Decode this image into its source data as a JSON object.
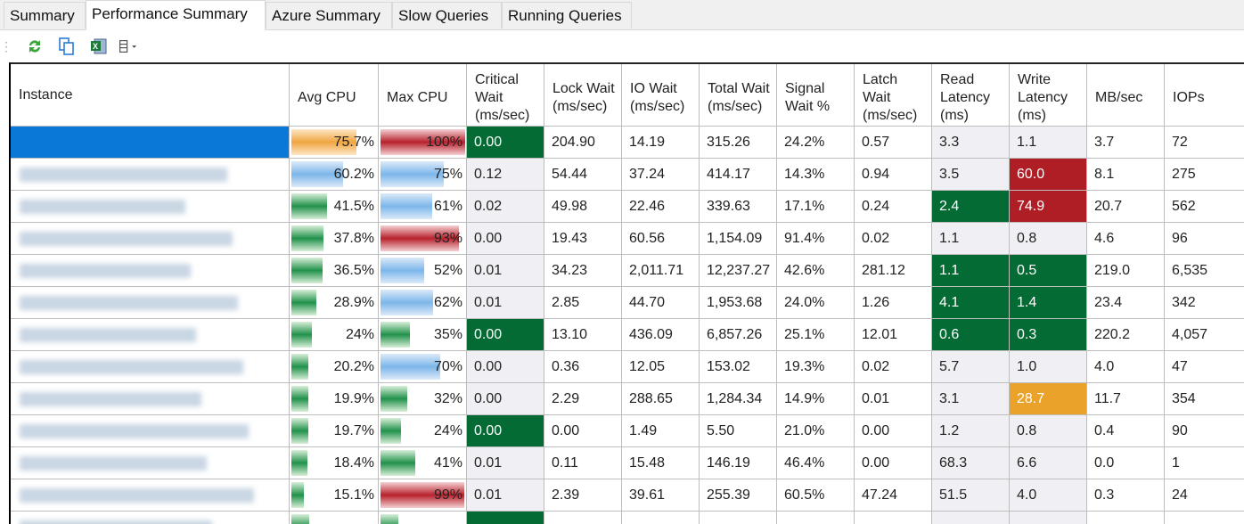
{
  "tabs": [
    "Summary",
    "Performance Summary",
    "Azure Summary",
    "Slow Queries",
    "Running Queries"
  ],
  "active_tab": "Performance Summary",
  "toolbar": {
    "icons": [
      "refresh-icon",
      "copy-icon",
      "excel-export-icon",
      "columns-menu-icon"
    ]
  },
  "columns": [
    "Instance",
    "Avg CPU",
    "Max CPU",
    "Critical Wait (ms/sec)",
    "Lock Wait (ms/sec)",
    "IO Wait (ms/sec)",
    "Total Wait (ms/sec)",
    "Signal Wait %",
    "Latch Wait (ms/sec)",
    "Read Latency (ms)",
    "Write Latency (ms)",
    "MB/sec",
    "IOPs"
  ],
  "colors": {
    "green": "#056b34",
    "red": "#b01e25",
    "orange": "#eaa22a",
    "selected": "#0a78d7"
  },
  "rows": [
    {
      "avg": "75.7%",
      "avgv": 75.7,
      "avgc": "orange",
      "max": "100%",
      "maxv": 100,
      "maxc": "red",
      "crit": "0.00",
      "critc": "green",
      "lock": "204.90",
      "io": "14.19",
      "total": "315.26",
      "signal": "24.2%",
      "latch": "0.57",
      "read": "3.3",
      "readc": "",
      "write": "1.1",
      "writec": "",
      "mb": "3.7",
      "iops": "72",
      "selected": true
    },
    {
      "avg": "60.2%",
      "avgv": 60.2,
      "avgc": "blue",
      "max": "75%",
      "maxv": 75,
      "maxc": "blue",
      "crit": "0.12",
      "critc": "",
      "lock": "54.44",
      "io": "37.24",
      "total": "414.17",
      "signal": "14.3%",
      "latch": "0.94",
      "read": "3.5",
      "readc": "",
      "write": "60.0",
      "writec": "red",
      "mb": "8.1",
      "iops": "275"
    },
    {
      "avg": "41.5%",
      "avgv": 41.5,
      "avgc": "green",
      "max": "61%",
      "maxv": 61,
      "maxc": "blue",
      "crit": "0.02",
      "critc": "",
      "lock": "49.98",
      "io": "22.46",
      "total": "339.63",
      "signal": "17.1%",
      "latch": "0.24",
      "read": "2.4",
      "readc": "green",
      "write": "74.9",
      "writec": "red",
      "mb": "20.7",
      "iops": "562"
    },
    {
      "avg": "37.8%",
      "avgv": 37.8,
      "avgc": "green",
      "max": "93%",
      "maxv": 93,
      "maxc": "red",
      "crit": "0.00",
      "critc": "",
      "lock": "19.43",
      "io": "60.56",
      "total": "1,154.09",
      "signal": "91.4%",
      "latch": "0.02",
      "read": "1.1",
      "readc": "",
      "write": "0.8",
      "writec": "",
      "mb": "4.6",
      "iops": "96"
    },
    {
      "avg": "36.5%",
      "avgv": 36.5,
      "avgc": "green",
      "max": "52%",
      "maxv": 52,
      "maxc": "blue",
      "crit": "0.01",
      "critc": "",
      "lock": "34.23",
      "io": "2,011.71",
      "total": "12,237.27",
      "signal": "42.6%",
      "latch": "281.12",
      "read": "1.1",
      "readc": "green",
      "write": "0.5",
      "writec": "green",
      "mb": "219.0",
      "iops": "6,535"
    },
    {
      "avg": "28.9%",
      "avgv": 28.9,
      "avgc": "green",
      "max": "62%",
      "maxv": 62,
      "maxc": "blue",
      "crit": "0.01",
      "critc": "",
      "lock": "2.85",
      "io": "44.70",
      "total": "1,953.68",
      "signal": "24.0%",
      "latch": "1.26",
      "read": "4.1",
      "readc": "green",
      "write": "1.4",
      "writec": "green",
      "mb": "23.4",
      "iops": "342"
    },
    {
      "avg": "24%",
      "avgv": 24,
      "avgc": "green",
      "max": "35%",
      "maxv": 35,
      "maxc": "green",
      "crit": "0.00",
      "critc": "green",
      "lock": "13.10",
      "io": "436.09",
      "total": "6,857.26",
      "signal": "25.1%",
      "latch": "12.01",
      "read": "0.6",
      "readc": "green",
      "write": "0.3",
      "writec": "green",
      "mb": "220.2",
      "iops": "4,057"
    },
    {
      "avg": "20.2%",
      "avgv": 20.2,
      "avgc": "green",
      "max": "70%",
      "maxv": 70,
      "maxc": "blue",
      "crit": "0.00",
      "critc": "",
      "lock": "0.36",
      "io": "12.05",
      "total": "153.02",
      "signal": "19.3%",
      "latch": "0.02",
      "read": "5.7",
      "readc": "",
      "write": "1.0",
      "writec": "",
      "mb": "4.0",
      "iops": "47"
    },
    {
      "avg": "19.9%",
      "avgv": 19.9,
      "avgc": "green",
      "max": "32%",
      "maxv": 32,
      "maxc": "green",
      "crit": "0.00",
      "critc": "",
      "lock": "2.29",
      "io": "288.65",
      "total": "1,284.34",
      "signal": "14.9%",
      "latch": "0.01",
      "read": "3.1",
      "readc": "",
      "write": "28.7",
      "writec": "orange",
      "mb": "11.7",
      "iops": "354"
    },
    {
      "avg": "19.7%",
      "avgv": 19.7,
      "avgc": "green",
      "max": "24%",
      "maxv": 24,
      "maxc": "green",
      "crit": "0.00",
      "critc": "green",
      "lock": "0.00",
      "io": "1.49",
      "total": "5.50",
      "signal": "21.0%",
      "latch": "0.00",
      "read": "1.2",
      "readc": "",
      "write": "0.8",
      "writec": "",
      "mb": "0.4",
      "iops": "90"
    },
    {
      "avg": "18.4%",
      "avgv": 18.4,
      "avgc": "green",
      "max": "41%",
      "maxv": 41,
      "maxc": "green",
      "crit": "0.01",
      "critc": "",
      "lock": "0.11",
      "io": "15.48",
      "total": "146.19",
      "signal": "46.4%",
      "latch": "0.00",
      "read": "68.3",
      "readc": "",
      "write": "6.6",
      "writec": "",
      "mb": "0.0",
      "iops": "1"
    },
    {
      "avg": "15.1%",
      "avgv": 15.1,
      "avgc": "green",
      "max": "99%",
      "maxv": 99,
      "maxc": "red",
      "crit": "0.01",
      "critc": "",
      "lock": "2.39",
      "io": "39.61",
      "total": "255.39",
      "signal": "60.5%",
      "latch": "47.24",
      "read": "51.5",
      "readc": "",
      "write": "4.0",
      "writec": "",
      "mb": "0.3",
      "iops": "24"
    }
  ]
}
